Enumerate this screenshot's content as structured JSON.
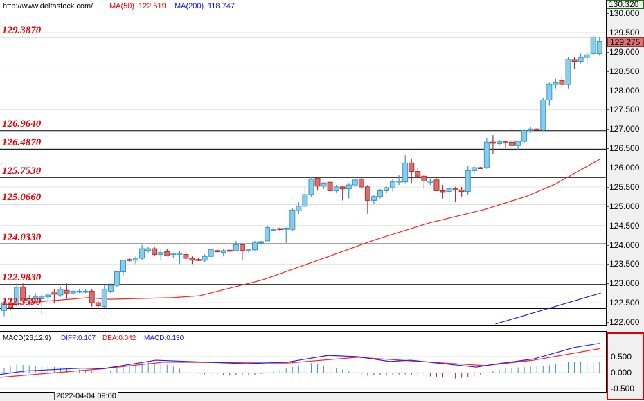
{
  "header": {
    "url": "http://www.deltastock.com/",
    "ma50_label": "MA(50)",
    "ma50_value": "122.519",
    "ma200_label": "MA(200)",
    "ma200_value": "118.747"
  },
  "price_axis": {
    "top_price": "130.320",
    "current_price": "129.275",
    "ticks": [
      "130.000",
      "129.500",
      "129.000",
      "128.500",
      "128.000",
      "127.500",
      "127.000",
      "126.500",
      "126.000",
      "125.500",
      "125.000",
      "124.500",
      "124.000",
      "123.500",
      "123.000",
      "122.500",
      "122.000"
    ]
  },
  "macd": {
    "title": "MACD(26,12,9)",
    "diff": "DIFF:0.107",
    "dea": "DEA:0.042",
    "macd": "MACD:0.130",
    "ticks": [
      "0.500",
      "0.000",
      "-0.500"
    ]
  },
  "time_label": "2022-04-04 09:00",
  "colors": {
    "up_fill": "#87ceeb",
    "up_border": "#3a95c8",
    "down_fill": "#d9706f",
    "down_border": "#b03030",
    "ma50": "#ff2020",
    "ma200": "#2020e0",
    "level_text": "#f00000"
  },
  "chart_data": {
    "type": "candlestick",
    "ylim": [
      121.9,
      130.32
    ],
    "levels": [
      "129.3870",
      "126.9640",
      "126.4870",
      "125.7530",
      "125.0660",
      "124.0330",
      "122.9830",
      "122.3590"
    ],
    "ohlc": [
      [
        122.3,
        122.55,
        122.15,
        122.5
      ],
      [
        122.5,
        122.6,
        122.3,
        122.38
      ],
      [
        122.45,
        123.0,
        122.4,
        122.9
      ],
      [
        122.9,
        123.0,
        122.5,
        122.55
      ],
      [
        122.55,
        122.7,
        122.45,
        122.6
      ],
      [
        122.6,
        122.75,
        122.5,
        122.65
      ],
      [
        122.6,
        122.72,
        122.2,
        122.65
      ],
      [
        122.65,
        122.75,
        122.55,
        122.7
      ],
      [
        122.78,
        122.85,
        122.5,
        122.72
      ],
      [
        122.7,
        122.9,
        122.65,
        122.85
      ],
      [
        122.82,
        123.0,
        122.6,
        122.75
      ],
      [
        122.75,
        122.85,
        122.7,
        122.8
      ],
      [
        122.79,
        122.85,
        122.75,
        122.8
      ],
      [
        122.79,
        122.85,
        122.75,
        122.8
      ],
      [
        122.8,
        122.85,
        122.4,
        122.5
      ],
      [
        122.5,
        122.55,
        122.35,
        122.42
      ],
      [
        122.4,
        122.95,
        122.38,
        122.85
      ],
      [
        122.8,
        123.0,
        122.75,
        122.95
      ],
      [
        122.95,
        123.3,
        122.9,
        123.3
      ],
      [
        123.3,
        123.62,
        123.2,
        123.6
      ],
      [
        123.62,
        123.65,
        123.55,
        123.6
      ],
      [
        123.6,
        123.7,
        123.5,
        123.65
      ],
      [
        123.65,
        124.0,
        123.6,
        123.9
      ],
      [
        123.85,
        123.95,
        123.8,
        123.9
      ],
      [
        123.9,
        123.95,
        123.7,
        123.75
      ],
      [
        123.75,
        123.9,
        123.6,
        123.8
      ],
      [
        123.82,
        123.9,
        123.7,
        123.72
      ],
      [
        123.75,
        123.8,
        123.65,
        123.78
      ],
      [
        123.77,
        123.85,
        123.5,
        123.78
      ],
      [
        123.75,
        123.82,
        123.6,
        123.65
      ],
      [
        123.65,
        123.7,
        123.5,
        123.6
      ],
      [
        123.62,
        123.65,
        123.58,
        123.6
      ],
      [
        123.6,
        123.75,
        123.55,
        123.7
      ],
      [
        123.7,
        123.9,
        123.65,
        123.88
      ],
      [
        123.85,
        123.9,
        123.8,
        123.82
      ],
      [
        123.8,
        123.9,
        123.7,
        123.85
      ],
      [
        123.86,
        123.87,
        123.82,
        123.85
      ],
      [
        123.85,
        124.1,
        123.85,
        124.0
      ],
      [
        124.0,
        124.02,
        123.6,
        123.85
      ],
      [
        123.85,
        123.9,
        123.8,
        123.87
      ],
      [
        123.87,
        124.1,
        123.85,
        124.05
      ],
      [
        124.05,
        124.1,
        124.0,
        124.08
      ],
      [
        124.1,
        124.5,
        124.1,
        124.45
      ],
      [
        124.39,
        124.45,
        124.35,
        124.4
      ],
      [
        124.42,
        124.45,
        124.35,
        124.4
      ],
      [
        124.4,
        124.45,
        124.05,
        124.43
      ],
      [
        124.4,
        124.95,
        124.35,
        124.9
      ],
      [
        124.88,
        125.1,
        124.8,
        125.0
      ],
      [
        125.0,
        125.5,
        124.95,
        125.3
      ],
      [
        125.3,
        125.75,
        125.25,
        125.7
      ],
      [
        125.72,
        125.75,
        125.4,
        125.52
      ],
      [
        125.52,
        125.62,
        125.45,
        125.6
      ],
      [
        125.62,
        125.62,
        125.38,
        125.4
      ],
      [
        125.4,
        125.55,
        125.36,
        125.5
      ],
      [
        125.5,
        125.52,
        125.15,
        125.45
      ],
      [
        125.45,
        125.6,
        125.2,
        125.55
      ],
      [
        125.55,
        125.75,
        125.5,
        125.68
      ],
      [
        125.7,
        125.75,
        125.45,
        125.5
      ],
      [
        125.5,
        125.55,
        124.8,
        125.15
      ],
      [
        125.15,
        125.3,
        125.05,
        125.25
      ],
      [
        125.25,
        125.45,
        125.2,
        125.4
      ],
      [
        125.4,
        125.52,
        125.35,
        125.48
      ],
      [
        125.48,
        125.72,
        125.38,
        125.63
      ],
      [
        125.63,
        125.8,
        125.55,
        125.65
      ],
      [
        125.63,
        126.32,
        125.6,
        126.12
      ],
      [
        126.12,
        126.22,
        125.6,
        125.9
      ],
      [
        125.9,
        126.0,
        125.7,
        125.78
      ],
      [
        125.78,
        125.8,
        125.45,
        125.65
      ],
      [
        125.62,
        125.72,
        125.55,
        125.65
      ],
      [
        125.68,
        125.72,
        125.4,
        125.4
      ],
      [
        125.4,
        125.55,
        125.2,
        125.38
      ],
      [
        125.38,
        125.47,
        125.1,
        125.45
      ],
      [
        125.45,
        125.5,
        125.1,
        125.42
      ],
      [
        125.42,
        125.5,
        125.25,
        125.38
      ],
      [
        125.38,
        126.05,
        125.3,
        125.92
      ],
      [
        125.92,
        126.05,
        125.85,
        126.0
      ],
      [
        126.0,
        126.02,
        125.97,
        125.98
      ],
      [
        126.0,
        126.77,
        125.97,
        126.66
      ],
      [
        126.66,
        126.84,
        126.35,
        126.63
      ],
      [
        126.62,
        126.72,
        126.57,
        126.67
      ],
      [
        126.67,
        126.7,
        126.52,
        126.66
      ],
      [
        126.66,
        126.67,
        126.57,
        126.57
      ],
      [
        126.57,
        126.69,
        126.45,
        126.68
      ],
      [
        126.68,
        127.0,
        126.65,
        126.96
      ],
      [
        126.96,
        127.05,
        126.9,
        127.0
      ],
      [
        127.0,
        127.02,
        126.95,
        126.98
      ],
      [
        126.98,
        127.8,
        126.95,
        127.75
      ],
      [
        127.75,
        128.2,
        127.6,
        128.15
      ],
      [
        128.15,
        128.3,
        128.05,
        128.2
      ],
      [
        128.25,
        128.4,
        128.05,
        128.15
      ],
      [
        128.15,
        128.85,
        128.05,
        128.8
      ],
      [
        128.8,
        128.85,
        128.55,
        128.75
      ],
      [
        128.75,
        128.95,
        128.7,
        128.85
      ],
      [
        128.85,
        129.0,
        128.7,
        128.92
      ],
      [
        128.95,
        129.42,
        128.9,
        129.38
      ],
      [
        128.95,
        129.38,
        128.9,
        129.275
      ]
    ],
    "ma50": [
      [
        0,
        122.45
      ],
      [
        13.4,
        122.63
      ],
      [
        16.8,
        122.59
      ],
      [
        26.8,
        122.63
      ],
      [
        31.2,
        122.68
      ],
      [
        41.2,
        123.09
      ],
      [
        50.1,
        123.6
      ],
      [
        59,
        124.12
      ],
      [
        67.9,
        124.57
      ],
      [
        76.8,
        124.92
      ],
      [
        83.4,
        125.26
      ],
      [
        87.9,
        125.57
      ],
      [
        95.2,
        126.23
      ]
    ],
    "ma200": [
      [
        78.4,
        121.95
      ],
      [
        95.2,
        122.75
      ]
    ],
    "macd_diff": [
      [
        -0.7,
        -0.06
      ],
      [
        3.3,
        0.05
      ],
      [
        12.5,
        0.14
      ],
      [
        15.7,
        0.12
      ],
      [
        24.2,
        0.39
      ],
      [
        38.7,
        0.28
      ],
      [
        45.2,
        0.33
      ],
      [
        51.7,
        0.54
      ],
      [
        56.4,
        0.5
      ],
      [
        61.5,
        0.35
      ],
      [
        64.9,
        0.39
      ],
      [
        75.4,
        0.17
      ],
      [
        78,
        0.26
      ],
      [
        84.5,
        0.43
      ],
      [
        91,
        0.79
      ],
      [
        95,
        0.92
      ]
    ],
    "macd_dea": [
      [
        -0.7,
        -0.15
      ],
      [
        15.7,
        0.12
      ],
      [
        25.5,
        0.33
      ],
      [
        45.2,
        0.3
      ],
      [
        56.4,
        0.48
      ],
      [
        64.9,
        0.37
      ],
      [
        76.7,
        0.22
      ],
      [
        84.5,
        0.39
      ],
      [
        95,
        0.75
      ]
    ],
    "macd_hist": [
      [
        0,
        0.15
      ],
      [
        2,
        0.25
      ],
      [
        8,
        0.18
      ],
      [
        14,
        0.05
      ],
      [
        16,
        0
      ],
      [
        18,
        0.15
      ],
      [
        23,
        0.35
      ],
      [
        26,
        0.25
      ],
      [
        30,
        0
      ],
      [
        33,
        -0.08
      ],
      [
        40,
        -0.08
      ],
      [
        42,
        0
      ],
      [
        44,
        0.1
      ],
      [
        49,
        0.3
      ],
      [
        53,
        0.15
      ],
      [
        56,
        0
      ],
      [
        58,
        -0.1
      ],
      [
        64,
        -0.05
      ],
      [
        68,
        -0.12
      ],
      [
        72,
        -0.19
      ],
      [
        75,
        -0.12
      ],
      [
        77,
        0
      ],
      [
        80,
        0.15
      ],
      [
        86,
        0.2
      ],
      [
        90,
        0.33
      ],
      [
        95,
        0.33
      ]
    ],
    "macd_ylim": [
      -0.65,
      1.3
    ]
  }
}
